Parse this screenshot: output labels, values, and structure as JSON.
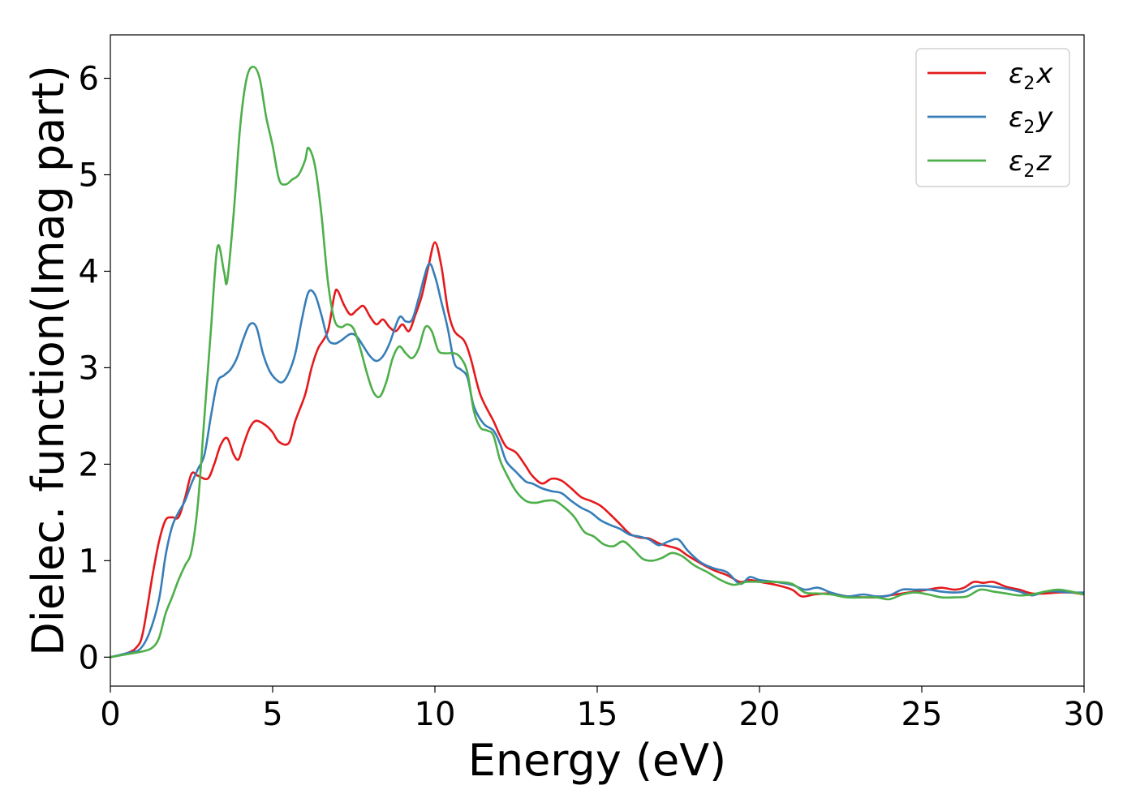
{
  "chart_data": {
    "type": "line",
    "xlabel": "Energy (eV)",
    "ylabel": "Dielec. function(Imag part)",
    "xlim": [
      0,
      30
    ],
    "ylim": [
      -0.3,
      6.45
    ],
    "xticks": [
      0,
      5,
      10,
      15,
      20,
      25,
      30
    ],
    "yticks": [
      0,
      1,
      2,
      3,
      4,
      5,
      6
    ],
    "grid": false,
    "legend_position": "top-right",
    "series": [
      {
        "name": "ε2x",
        "legend": {
          "main": "ε",
          "sub": "2",
          "var": "x"
        },
        "color": "#e41a1c",
        "points": [
          [
            0,
            0
          ],
          [
            0.5,
            0.04
          ],
          [
            0.8,
            0.1
          ],
          [
            1.0,
            0.25
          ],
          [
            1.3,
            0.85
          ],
          [
            1.5,
            1.2
          ],
          [
            1.7,
            1.42
          ],
          [
            1.9,
            1.45
          ],
          [
            2.1,
            1.45
          ],
          [
            2.3,
            1.65
          ],
          [
            2.5,
            1.9
          ],
          [
            2.7,
            1.88
          ],
          [
            3.0,
            1.85
          ],
          [
            3.2,
            2.0
          ],
          [
            3.4,
            2.2
          ],
          [
            3.6,
            2.27
          ],
          [
            3.8,
            2.1
          ],
          [
            3.95,
            2.05
          ],
          [
            4.1,
            2.2
          ],
          [
            4.3,
            2.38
          ],
          [
            4.5,
            2.45
          ],
          [
            4.8,
            2.4
          ],
          [
            5.0,
            2.33
          ],
          [
            5.2,
            2.23
          ],
          [
            5.5,
            2.22
          ],
          [
            5.7,
            2.45
          ],
          [
            6.0,
            2.72
          ],
          [
            6.2,
            3.0
          ],
          [
            6.4,
            3.2
          ],
          [
            6.7,
            3.38
          ],
          [
            6.9,
            3.75
          ],
          [
            7.0,
            3.8
          ],
          [
            7.2,
            3.65
          ],
          [
            7.4,
            3.55
          ],
          [
            7.6,
            3.6
          ],
          [
            7.8,
            3.64
          ],
          [
            8.0,
            3.53
          ],
          [
            8.2,
            3.45
          ],
          [
            8.4,
            3.5
          ],
          [
            8.6,
            3.42
          ],
          [
            8.8,
            3.38
          ],
          [
            9.0,
            3.45
          ],
          [
            9.2,
            3.38
          ],
          [
            9.4,
            3.55
          ],
          [
            9.6,
            3.75
          ],
          [
            9.8,
            4.05
          ],
          [
            10.0,
            4.3
          ],
          [
            10.2,
            4.05
          ],
          [
            10.4,
            3.6
          ],
          [
            10.6,
            3.38
          ],
          [
            10.9,
            3.28
          ],
          [
            11.1,
            3.1
          ],
          [
            11.4,
            2.72
          ],
          [
            11.8,
            2.45
          ],
          [
            12.0,
            2.3
          ],
          [
            12.2,
            2.18
          ],
          [
            12.5,
            2.12
          ],
          [
            12.8,
            1.98
          ],
          [
            13.0,
            1.88
          ],
          [
            13.3,
            1.8
          ],
          [
            13.6,
            1.85
          ],
          [
            13.9,
            1.83
          ],
          [
            14.2,
            1.75
          ],
          [
            14.5,
            1.66
          ],
          [
            14.8,
            1.62
          ],
          [
            15.1,
            1.57
          ],
          [
            15.4,
            1.48
          ],
          [
            15.7,
            1.38
          ],
          [
            16.0,
            1.28
          ],
          [
            16.3,
            1.24
          ],
          [
            16.6,
            1.23
          ],
          [
            16.9,
            1.18
          ],
          [
            17.2,
            1.15
          ],
          [
            17.5,
            1.12
          ],
          [
            17.8,
            1.05
          ],
          [
            18.2,
            0.97
          ],
          [
            18.6,
            0.9
          ],
          [
            19.0,
            0.85
          ],
          [
            19.4,
            0.78
          ],
          [
            19.7,
            0.8
          ],
          [
            20.0,
            0.78
          ],
          [
            20.5,
            0.75
          ],
          [
            21.0,
            0.7
          ],
          [
            21.3,
            0.63
          ],
          [
            21.7,
            0.65
          ],
          [
            22.2,
            0.66
          ],
          [
            22.7,
            0.63
          ],
          [
            23.2,
            0.62
          ],
          [
            23.6,
            0.62
          ],
          [
            24.0,
            0.64
          ],
          [
            24.4,
            0.66
          ],
          [
            24.8,
            0.68
          ],
          [
            25.2,
            0.7
          ],
          [
            25.6,
            0.72
          ],
          [
            26.0,
            0.7
          ],
          [
            26.3,
            0.72
          ],
          [
            26.6,
            0.78
          ],
          [
            26.9,
            0.77
          ],
          [
            27.2,
            0.78
          ],
          [
            27.6,
            0.73
          ],
          [
            28.0,
            0.7
          ],
          [
            28.4,
            0.66
          ],
          [
            28.8,
            0.66
          ],
          [
            29.2,
            0.67
          ],
          [
            29.6,
            0.67
          ],
          [
            30.0,
            0.65
          ]
        ]
      },
      {
        "name": "ε2y",
        "legend": {
          "main": "ε",
          "sub": "2",
          "var": "y"
        },
        "color": "#377eb8",
        "points": [
          [
            0,
            0
          ],
          [
            0.5,
            0.04
          ],
          [
            0.9,
            0.08
          ],
          [
            1.2,
            0.25
          ],
          [
            1.5,
            0.6
          ],
          [
            1.7,
            1.05
          ],
          [
            1.9,
            1.35
          ],
          [
            2.1,
            1.5
          ],
          [
            2.3,
            1.62
          ],
          [
            2.5,
            1.8
          ],
          [
            2.7,
            1.95
          ],
          [
            2.9,
            2.1
          ],
          [
            3.1,
            2.5
          ],
          [
            3.3,
            2.85
          ],
          [
            3.5,
            2.92
          ],
          [
            3.7,
            2.98
          ],
          [
            3.9,
            3.1
          ],
          [
            4.1,
            3.3
          ],
          [
            4.3,
            3.45
          ],
          [
            4.5,
            3.42
          ],
          [
            4.7,
            3.15
          ],
          [
            4.9,
            2.97
          ],
          [
            5.1,
            2.88
          ],
          [
            5.3,
            2.85
          ],
          [
            5.5,
            2.95
          ],
          [
            5.7,
            3.15
          ],
          [
            5.9,
            3.5
          ],
          [
            6.1,
            3.78
          ],
          [
            6.3,
            3.76
          ],
          [
            6.5,
            3.55
          ],
          [
            6.7,
            3.3
          ],
          [
            6.9,
            3.25
          ],
          [
            7.1,
            3.28
          ],
          [
            7.4,
            3.35
          ],
          [
            7.6,
            3.32
          ],
          [
            7.8,
            3.22
          ],
          [
            8.0,
            3.12
          ],
          [
            8.2,
            3.07
          ],
          [
            8.4,
            3.12
          ],
          [
            8.6,
            3.25
          ],
          [
            8.9,
            3.52
          ],
          [
            9.1,
            3.48
          ],
          [
            9.3,
            3.5
          ],
          [
            9.5,
            3.72
          ],
          [
            9.8,
            4.07
          ],
          [
            10.0,
            3.95
          ],
          [
            10.2,
            3.68
          ],
          [
            10.4,
            3.4
          ],
          [
            10.6,
            3.05
          ],
          [
            10.8,
            2.98
          ],
          [
            11.0,
            2.9
          ],
          [
            11.2,
            2.6
          ],
          [
            11.5,
            2.42
          ],
          [
            11.8,
            2.35
          ],
          [
            12.0,
            2.22
          ],
          [
            12.2,
            2.03
          ],
          [
            12.5,
            1.92
          ],
          [
            12.8,
            1.82
          ],
          [
            13.0,
            1.8
          ],
          [
            13.3,
            1.75
          ],
          [
            13.6,
            1.72
          ],
          [
            13.9,
            1.7
          ],
          [
            14.2,
            1.62
          ],
          [
            14.5,
            1.55
          ],
          [
            14.8,
            1.5
          ],
          [
            15.1,
            1.42
          ],
          [
            15.4,
            1.37
          ],
          [
            15.7,
            1.33
          ],
          [
            16.0,
            1.27
          ],
          [
            16.3,
            1.25
          ],
          [
            16.6,
            1.22
          ],
          [
            16.9,
            1.16
          ],
          [
            17.2,
            1.2
          ],
          [
            17.5,
            1.22
          ],
          [
            17.8,
            1.1
          ],
          [
            18.2,
            0.98
          ],
          [
            18.6,
            0.92
          ],
          [
            19.0,
            0.88
          ],
          [
            19.4,
            0.76
          ],
          [
            19.7,
            0.83
          ],
          [
            20.0,
            0.8
          ],
          [
            20.5,
            0.78
          ],
          [
            21.0,
            0.75
          ],
          [
            21.4,
            0.7
          ],
          [
            21.8,
            0.72
          ],
          [
            22.2,
            0.67
          ],
          [
            22.7,
            0.63
          ],
          [
            23.2,
            0.65
          ],
          [
            23.6,
            0.63
          ],
          [
            24.0,
            0.64
          ],
          [
            24.4,
            0.7
          ],
          [
            24.8,
            0.7
          ],
          [
            25.2,
            0.7
          ],
          [
            25.6,
            0.68
          ],
          [
            26.0,
            0.67
          ],
          [
            26.3,
            0.68
          ],
          [
            26.6,
            0.73
          ],
          [
            26.9,
            0.74
          ],
          [
            27.2,
            0.73
          ],
          [
            27.6,
            0.71
          ],
          [
            28.0,
            0.68
          ],
          [
            28.4,
            0.64
          ],
          [
            28.8,
            0.68
          ],
          [
            29.2,
            0.68
          ],
          [
            29.6,
            0.67
          ],
          [
            30.0,
            0.67
          ]
        ]
      },
      {
        "name": "ε2z",
        "legend": {
          "main": "ε",
          "sub": "2",
          "var": "z"
        },
        "color": "#4daf4a",
        "points": [
          [
            0,
            0
          ],
          [
            0.5,
            0.03
          ],
          [
            1.0,
            0.06
          ],
          [
            1.3,
            0.1
          ],
          [
            1.5,
            0.2
          ],
          [
            1.7,
            0.45
          ],
          [
            1.9,
            0.62
          ],
          [
            2.1,
            0.8
          ],
          [
            2.3,
            0.95
          ],
          [
            2.5,
            1.1
          ],
          [
            2.7,
            1.6
          ],
          [
            2.9,
            2.5
          ],
          [
            3.1,
            3.4
          ],
          [
            3.3,
            4.25
          ],
          [
            3.5,
            4.0
          ],
          [
            3.6,
            3.9
          ],
          [
            3.8,
            4.6
          ],
          [
            4.0,
            5.5
          ],
          [
            4.2,
            6.0
          ],
          [
            4.4,
            6.12
          ],
          [
            4.6,
            6.0
          ],
          [
            4.8,
            5.6
          ],
          [
            5.0,
            5.3
          ],
          [
            5.2,
            4.95
          ],
          [
            5.4,
            4.9
          ],
          [
            5.6,
            4.95
          ],
          [
            5.8,
            5.0
          ],
          [
            6.0,
            5.15
          ],
          [
            6.1,
            5.28
          ],
          [
            6.3,
            5.1
          ],
          [
            6.5,
            4.6
          ],
          [
            6.7,
            3.9
          ],
          [
            6.9,
            3.5
          ],
          [
            7.1,
            3.42
          ],
          [
            7.3,
            3.45
          ],
          [
            7.5,
            3.4
          ],
          [
            7.7,
            3.2
          ],
          [
            7.9,
            2.95
          ],
          [
            8.1,
            2.75
          ],
          [
            8.3,
            2.7
          ],
          [
            8.5,
            2.85
          ],
          [
            8.7,
            3.1
          ],
          [
            8.9,
            3.22
          ],
          [
            9.1,
            3.15
          ],
          [
            9.3,
            3.1
          ],
          [
            9.5,
            3.2
          ],
          [
            9.7,
            3.42
          ],
          [
            9.9,
            3.38
          ],
          [
            10.1,
            3.18
          ],
          [
            10.3,
            3.15
          ],
          [
            10.6,
            3.15
          ],
          [
            10.8,
            3.1
          ],
          [
            11.0,
            2.95
          ],
          [
            11.2,
            2.55
          ],
          [
            11.4,
            2.38
          ],
          [
            11.6,
            2.35
          ],
          [
            11.8,
            2.3
          ],
          [
            12.0,
            2.05
          ],
          [
            12.2,
            1.9
          ],
          [
            12.5,
            1.72
          ],
          [
            12.8,
            1.62
          ],
          [
            13.1,
            1.6
          ],
          [
            13.4,
            1.62
          ],
          [
            13.7,
            1.62
          ],
          [
            14.0,
            1.55
          ],
          [
            14.3,
            1.45
          ],
          [
            14.6,
            1.3
          ],
          [
            14.9,
            1.25
          ],
          [
            15.2,
            1.17
          ],
          [
            15.5,
            1.15
          ],
          [
            15.8,
            1.2
          ],
          [
            16.1,
            1.12
          ],
          [
            16.4,
            1.02
          ],
          [
            16.7,
            1.0
          ],
          [
            17.0,
            1.03
          ],
          [
            17.3,
            1.08
          ],
          [
            17.6,
            1.05
          ],
          [
            18.0,
            0.95
          ],
          [
            18.4,
            0.88
          ],
          [
            18.8,
            0.8
          ],
          [
            19.2,
            0.75
          ],
          [
            19.6,
            0.78
          ],
          [
            20.0,
            0.78
          ],
          [
            20.5,
            0.78
          ],
          [
            21.0,
            0.76
          ],
          [
            21.4,
            0.67
          ],
          [
            21.8,
            0.66
          ],
          [
            22.2,
            0.65
          ],
          [
            22.7,
            0.62
          ],
          [
            23.2,
            0.62
          ],
          [
            23.6,
            0.62
          ],
          [
            24.0,
            0.6
          ],
          [
            24.4,
            0.65
          ],
          [
            24.8,
            0.67
          ],
          [
            25.2,
            0.65
          ],
          [
            25.6,
            0.62
          ],
          [
            26.0,
            0.62
          ],
          [
            26.4,
            0.63
          ],
          [
            26.8,
            0.7
          ],
          [
            27.2,
            0.68
          ],
          [
            27.6,
            0.66
          ],
          [
            28.0,
            0.64
          ],
          [
            28.4,
            0.65
          ],
          [
            28.8,
            0.68
          ],
          [
            29.2,
            0.7
          ],
          [
            29.6,
            0.68
          ],
          [
            30.0,
            0.65
          ]
        ]
      }
    ]
  }
}
